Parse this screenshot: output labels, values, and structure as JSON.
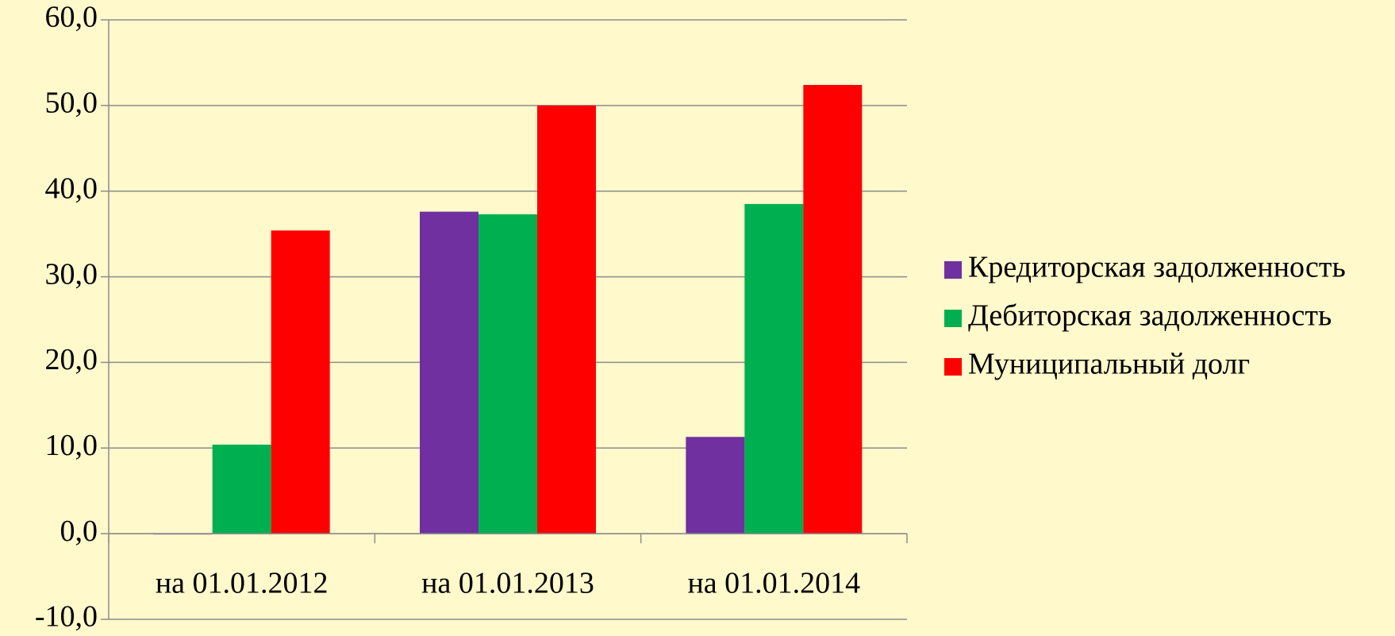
{
  "chart_data": {
    "type": "bar",
    "categories": [
      "на 01.01.2012",
      "на 01.01.2013",
      "на 01.01.2014"
    ],
    "series": [
      {
        "name": "Кредиторская задолженность",
        "color": "#7030a0",
        "values": [
          0.0,
          37.6,
          11.3
        ]
      },
      {
        "name": "Дебиторская задолженность",
        "color": "#00b050",
        "values": [
          10.4,
          37.3,
          38.5
        ]
      },
      {
        "name": "Муниципальный долг",
        "color": "#ff0000",
        "values": [
          35.4,
          50.0,
          52.4
        ]
      }
    ],
    "ylim": [
      -10,
      60
    ],
    "yticks": [
      {
        "value": -10,
        "label": "-10,0"
      },
      {
        "value": 0,
        "label": "0,0"
      },
      {
        "value": 10,
        "label": "10,0"
      },
      {
        "value": 20,
        "label": "20,0"
      },
      {
        "value": 30,
        "label": "30,0"
      },
      {
        "value": 40,
        "label": "40,0"
      },
      {
        "value": 50,
        "label": "50,0"
      },
      {
        "value": 60,
        "label": "60,0"
      }
    ],
    "grid": true,
    "legend": "right"
  }
}
